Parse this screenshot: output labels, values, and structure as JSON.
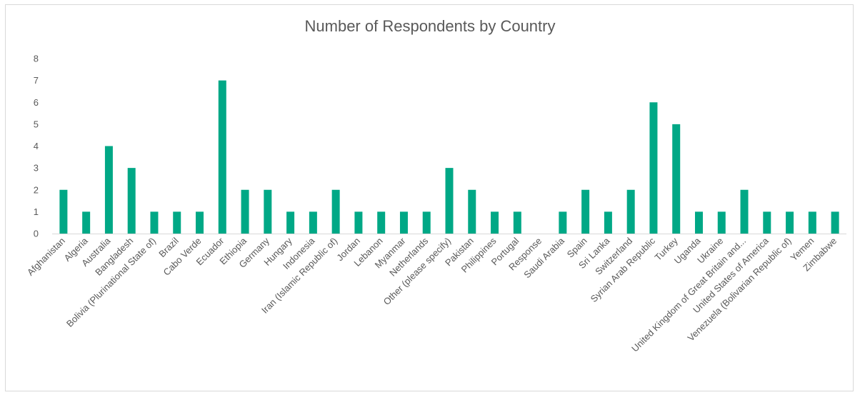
{
  "chart_data": {
    "type": "bar",
    "title": "Number of Respondents by Country",
    "xlabel": "",
    "ylabel": "",
    "ylim": [
      0,
      8
    ],
    "yticks": [
      0,
      1,
      2,
      3,
      4,
      5,
      6,
      7,
      8
    ],
    "grid": false,
    "legend": "none",
    "bar_color": "#00a886",
    "categories": [
      "Afghanistan",
      "Algeria",
      "Australia",
      "Bangladesh",
      "Bolivia (Plurinational State of)",
      "Brazil",
      "Cabo Verde",
      "Ecuador",
      "Ethiopia",
      "Germany",
      "Hungary",
      "Indonesia",
      "Iran (Islamic Republic of)",
      "Jordan",
      "Lebanon",
      "Myanmar",
      "Netherlands",
      "Other (please specify)",
      "Pakistan",
      "Philippines",
      "Portugal",
      "Response",
      "Saudi Arabia",
      "Spain",
      "Sri Lanka",
      "Switzerland",
      "Syrian Arab Republic",
      "Turkey",
      "Uganda",
      "Ukraine",
      "United Kingdom of Great Britain and...",
      "United States of America",
      "Venezuela (Bolivarian Republic of)",
      "Yemen",
      "Zimbabwe"
    ],
    "values": [
      2,
      1,
      4,
      3,
      1,
      1,
      1,
      7,
      2,
      2,
      1,
      1,
      2,
      1,
      1,
      1,
      1,
      3,
      2,
      1,
      1,
      0,
      1,
      2,
      1,
      2,
      6,
      5,
      1,
      1,
      2,
      1,
      1,
      1,
      1
    ]
  }
}
